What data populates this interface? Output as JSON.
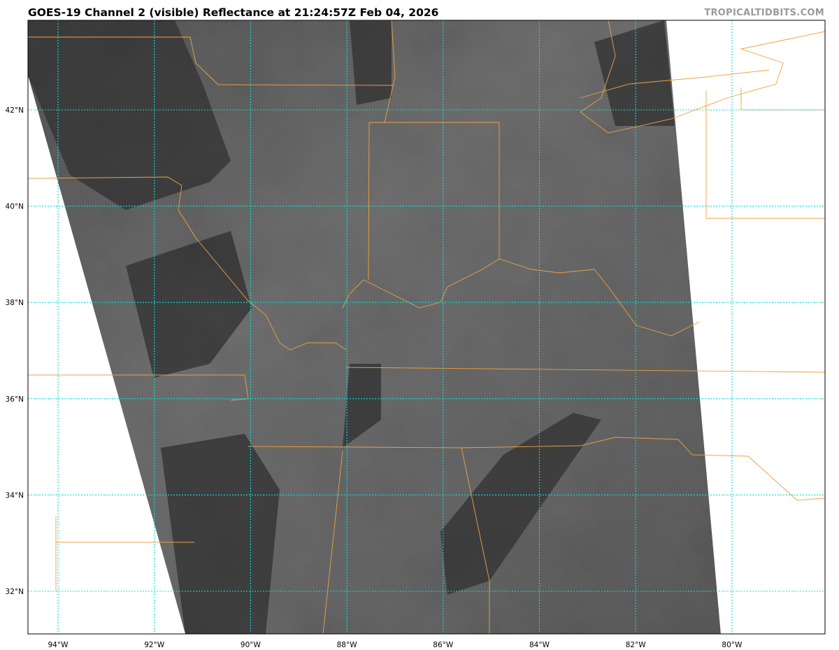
{
  "title": "GOES-19 Channel 2 (visible) Reflectance at 21:24:57Z Feb 04, 2026",
  "watermark": "TROPICALTIDBITS.COM",
  "map": {
    "colors": {
      "grid": "#00e5e5",
      "borders": "#f0a040",
      "frame": "#000000",
      "imagery_dark": "#333333",
      "imagery_light": "#7a7a7a"
    },
    "latitudes": [
      {
        "value": 42,
        "label": "42°N"
      },
      {
        "value": 40,
        "label": "40°N"
      },
      {
        "value": 38,
        "label": "38°N"
      },
      {
        "value": 36,
        "label": "36°N"
      },
      {
        "value": 34,
        "label": "34°N"
      },
      {
        "value": 32,
        "label": "32°N"
      }
    ],
    "longitudes": [
      {
        "value": -94,
        "label": "94°W"
      },
      {
        "value": -92,
        "label": "92°W"
      },
      {
        "value": -90,
        "label": "90°W"
      },
      {
        "value": -88,
        "label": "88°W"
      },
      {
        "value": -86,
        "label": "86°W"
      },
      {
        "value": -84,
        "label": "84°W"
      },
      {
        "value": -82,
        "label": "82°W"
      },
      {
        "value": -80,
        "label": "80°W"
      }
    ]
  }
}
